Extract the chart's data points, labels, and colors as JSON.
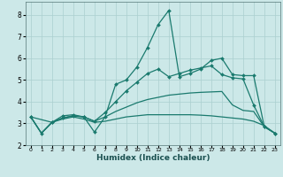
{
  "xlabel": "Humidex (Indice chaleur)",
  "background_color": "#cce8e8",
  "grid_color": "#aacfcf",
  "line_color": "#1a7a6e",
  "xlim": [
    -0.5,
    23.5
  ],
  "ylim": [
    2.0,
    8.6
  ],
  "yticks": [
    2,
    3,
    4,
    5,
    6,
    7,
    8
  ],
  "xticks": [
    0,
    1,
    2,
    3,
    4,
    5,
    6,
    7,
    8,
    9,
    10,
    11,
    12,
    13,
    14,
    15,
    16,
    17,
    18,
    19,
    20,
    21,
    22,
    23
  ],
  "series": [
    {
      "x": [
        0,
        1,
        2,
        3,
        4,
        5,
        6,
        7,
        8,
        9,
        10,
        11,
        12,
        13,
        14,
        15,
        16,
        17,
        18,
        19,
        20,
        21,
        22,
        23
      ],
      "y": [
        3.3,
        2.55,
        3.05,
        3.2,
        3.3,
        3.2,
        3.05,
        3.1,
        3.2,
        3.3,
        3.35,
        3.4,
        3.4,
        3.4,
        3.4,
        3.4,
        3.38,
        3.35,
        3.3,
        3.25,
        3.2,
        3.1,
        2.9,
        2.55
      ],
      "marker": false
    },
    {
      "x": [
        0,
        1,
        2,
        3,
        4,
        5,
        6,
        7,
        8,
        9,
        10,
        11,
        12,
        13,
        14,
        15,
        16,
        17,
        18,
        19,
        20,
        21,
        22,
        23
      ],
      "y": [
        3.3,
        2.55,
        3.05,
        3.25,
        3.35,
        3.3,
        3.1,
        3.3,
        3.55,
        3.75,
        3.95,
        4.1,
        4.2,
        4.3,
        4.35,
        4.4,
        4.43,
        4.45,
        4.47,
        3.85,
        3.6,
        3.55,
        2.85,
        2.55
      ],
      "marker": false
    },
    {
      "x": [
        0,
        1,
        2,
        3,
        4,
        5,
        6,
        7,
        8,
        9,
        10,
        11,
        12,
        13,
        14,
        15,
        16,
        17,
        18,
        19,
        20,
        21,
        22,
        23
      ],
      "y": [
        3.3,
        2.55,
        3.05,
        3.25,
        3.35,
        3.3,
        3.1,
        3.5,
        4.0,
        4.5,
        4.9,
        5.3,
        5.5,
        5.15,
        5.3,
        5.45,
        5.55,
        5.65,
        5.25,
        5.1,
        5.05,
        3.85,
        2.85,
        2.55
      ],
      "marker": true
    },
    {
      "x": [
        0,
        2,
        3,
        4,
        5,
        6,
        7,
        8,
        9,
        10,
        11,
        12,
        13,
        14,
        15,
        16,
        17,
        18,
        19,
        20,
        21,
        22,
        23
      ],
      "y": [
        3.3,
        3.05,
        3.35,
        3.4,
        3.3,
        2.6,
        3.3,
        4.8,
        5.0,
        5.6,
        6.5,
        7.55,
        8.2,
        5.15,
        5.3,
        5.5,
        5.9,
        6.0,
        5.25,
        5.2,
        5.2,
        2.85,
        2.55
      ],
      "marker": true
    }
  ]
}
